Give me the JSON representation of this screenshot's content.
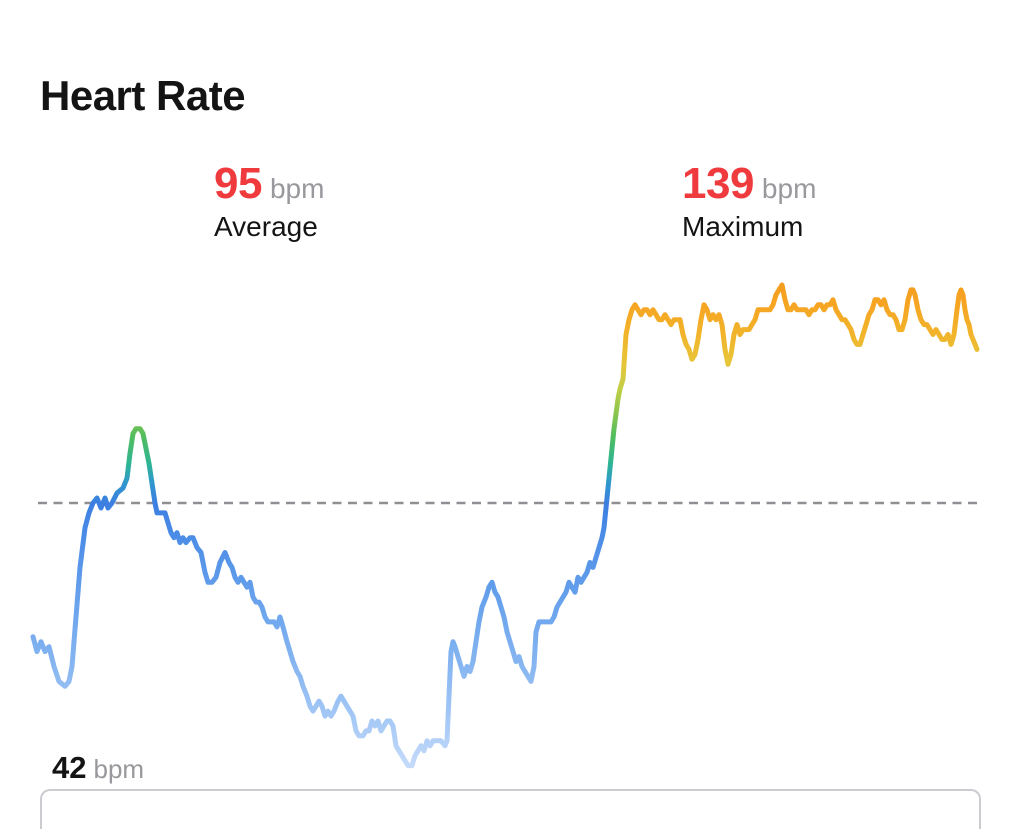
{
  "header": {
    "title": "Heart Rate"
  },
  "stats": {
    "average": {
      "value": "95",
      "unit": "bpm",
      "label": "Average"
    },
    "maximum": {
      "value": "139",
      "unit": "bpm",
      "label": "Maximum"
    }
  },
  "axis": {
    "min_value": "42",
    "min_unit": "bpm"
  },
  "colors": {
    "accent_red": "#EF3B3E",
    "unit_gray": "#98989D",
    "text_black": "#141414",
    "dashed_line": "#8F8F94",
    "axis_border": "#CBCBD0"
  },
  "chart_data": {
    "type": "line",
    "title": "Heart Rate",
    "unit": "bpm",
    "x_axis": "time (no labels shown)",
    "average": 95,
    "maximum": 139,
    "minimum": 42,
    "y_range": [
      42,
      141
    ],
    "grid": false,
    "legend": false,
    "average_reference_line_bpm": 95,
    "gradient_stops": [
      {
        "bpm": 141,
        "color": "#F3991E"
      },
      {
        "bpm": 135,
        "color": "#F6A523"
      },
      {
        "bpm": 129,
        "color": "#F1B42B"
      },
      {
        "bpm": 123,
        "color": "#E7C639"
      },
      {
        "bpm": 118,
        "color": "#C2CE47"
      },
      {
        "bpm": 112,
        "color": "#7CC350"
      },
      {
        "bpm": 108,
        "color": "#4FBC62"
      },
      {
        "bpm": 103,
        "color": "#2EB593"
      },
      {
        "bpm": 99,
        "color": "#2F97CE"
      },
      {
        "bpm": 95,
        "color": "#3C7FE1"
      },
      {
        "bpm": 88,
        "color": "#4C8DE7"
      },
      {
        "bpm": 75,
        "color": "#68A2EC"
      },
      {
        "bpm": 62,
        "color": "#87B6F1"
      },
      {
        "bpm": 50,
        "color": "#A9CBF6"
      },
      {
        "bpm": 42,
        "color": "#C4DAFA"
      }
    ],
    "points": [
      [
        33,
        68
      ],
      [
        37,
        65
      ],
      [
        41,
        67
      ],
      [
        45,
        65
      ],
      [
        49,
        66
      ],
      [
        54,
        62
      ],
      [
        59,
        59
      ],
      [
        65,
        58
      ],
      [
        69,
        59
      ],
      [
        72,
        62
      ],
      [
        76,
        72
      ],
      [
        80,
        82
      ],
      [
        85,
        90
      ],
      [
        89,
        93
      ],
      [
        93,
        95
      ],
      [
        97,
        96
      ],
      [
        101,
        94
      ],
      [
        105,
        96
      ],
      [
        108,
        94
      ],
      [
        112,
        95
      ],
      [
        117,
        97
      ],
      [
        123,
        98
      ],
      [
        127,
        100
      ],
      [
        130,
        105
      ],
      [
        133,
        109
      ],
      [
        136,
        110
      ],
      [
        140,
        110
      ],
      [
        143,
        109
      ],
      [
        146,
        106
      ],
      [
        149,
        103
      ],
      [
        152,
        99
      ],
      [
        155,
        95
      ],
      [
        157,
        93
      ],
      [
        161,
        93
      ],
      [
        165,
        93
      ],
      [
        168,
        91
      ],
      [
        171,
        89
      ],
      [
        174,
        88
      ],
      [
        177,
        89
      ],
      [
        180,
        87
      ],
      [
        183,
        88
      ],
      [
        186,
        87
      ],
      [
        190,
        88
      ],
      [
        193,
        88
      ],
      [
        197,
        86
      ],
      [
        201,
        85
      ],
      [
        205,
        81
      ],
      [
        208,
        79
      ],
      [
        212,
        79
      ],
      [
        216,
        80
      ],
      [
        220,
        83
      ],
      [
        225,
        85
      ],
      [
        229,
        83
      ],
      [
        232,
        82
      ],
      [
        235,
        80
      ],
      [
        238,
        79
      ],
      [
        241,
        80
      ],
      [
        244,
        79
      ],
      [
        247,
        78
      ],
      [
        250,
        79
      ],
      [
        253,
        76
      ],
      [
        256,
        75
      ],
      [
        259,
        75
      ],
      [
        262,
        74
      ],
      [
        265,
        72
      ],
      [
        268,
        71
      ],
      [
        271,
        71
      ],
      [
        274,
        71
      ],
      [
        277,
        70
      ],
      [
        280,
        72
      ],
      [
        283,
        70
      ],
      [
        287,
        67
      ],
      [
        290,
        65
      ],
      [
        293,
        63
      ],
      [
        297,
        61
      ],
      [
        300,
        60
      ],
      [
        303,
        58
      ],
      [
        307,
        56
      ],
      [
        310,
        54
      ],
      [
        313,
        53
      ],
      [
        316,
        54
      ],
      [
        319,
        55
      ],
      [
        322,
        54
      ],
      [
        325,
        52
      ],
      [
        328,
        53
      ],
      [
        331,
        52
      ],
      [
        334,
        53
      ],
      [
        338,
        55
      ],
      [
        341,
        56
      ],
      [
        344,
        55
      ],
      [
        347,
        54
      ],
      [
        350,
        53
      ],
      [
        353,
        52
      ],
      [
        356,
        49
      ],
      [
        359,
        48
      ],
      [
        363,
        48
      ],
      [
        366,
        49
      ],
      [
        369,
        49
      ],
      [
        372,
        51
      ],
      [
        375,
        50
      ],
      [
        378,
        51
      ],
      [
        381,
        49
      ],
      [
        384,
        50
      ],
      [
        387,
        51
      ],
      [
        390,
        51
      ],
      [
        393,
        50
      ],
      [
        396,
        46
      ],
      [
        399,
        45
      ],
      [
        402,
        44
      ],
      [
        405,
        43
      ],
      [
        408,
        42
      ],
      [
        412,
        42
      ],
      [
        415,
        44
      ],
      [
        418,
        45
      ],
      [
        421,
        46
      ],
      [
        424,
        45
      ],
      [
        427,
        47
      ],
      [
        430,
        46
      ],
      [
        433,
        47
      ],
      [
        437,
        47
      ],
      [
        441,
        47
      ],
      [
        445,
        46
      ],
      [
        447,
        47
      ],
      [
        449,
        56
      ],
      [
        451,
        65
      ],
      [
        453,
        67
      ],
      [
        455,
        66
      ],
      [
        458,
        64
      ],
      [
        461,
        62
      ],
      [
        464,
        60
      ],
      [
        467,
        62
      ],
      [
        470,
        61
      ],
      [
        473,
        63
      ],
      [
        476,
        67
      ],
      [
        479,
        71
      ],
      [
        482,
        74
      ],
      [
        486,
        76
      ],
      [
        489,
        78
      ],
      [
        492,
        79
      ],
      [
        495,
        77
      ],
      [
        498,
        76
      ],
      [
        501,
        74
      ],
      [
        504,
        72
      ],
      [
        507,
        69
      ],
      [
        510,
        67
      ],
      [
        513,
        65
      ],
      [
        516,
        63
      ],
      [
        519,
        64
      ],
      [
        522,
        62
      ],
      [
        525,
        61
      ],
      [
        528,
        60
      ],
      [
        531,
        59
      ],
      [
        534,
        62
      ],
      [
        536,
        69
      ],
      [
        539,
        71
      ],
      [
        543,
        71
      ],
      [
        547,
        71
      ],
      [
        551,
        71
      ],
      [
        554,
        72
      ],
      [
        557,
        74
      ],
      [
        560,
        75
      ],
      [
        563,
        76
      ],
      [
        566,
        77
      ],
      [
        569,
        79
      ],
      [
        572,
        78
      ],
      [
        575,
        77
      ],
      [
        578,
        80
      ],
      [
        581,
        79
      ],
      [
        584,
        80
      ],
      [
        587,
        81
      ],
      [
        590,
        83
      ],
      [
        593,
        82
      ],
      [
        596,
        84
      ],
      [
        599,
        86
      ],
      [
        602,
        88
      ],
      [
        604,
        90
      ],
      [
        606,
        94
      ],
      [
        608,
        98
      ],
      [
        610,
        102
      ],
      [
        612,
        106
      ],
      [
        614,
        110
      ],
      [
        616,
        113
      ],
      [
        618,
        116
      ],
      [
        620,
        118
      ],
      [
        623,
        120
      ],
      [
        626,
        129
      ],
      [
        629,
        132
      ],
      [
        632,
        134
      ],
      [
        635,
        135
      ],
      [
        638,
        134
      ],
      [
        641,
        133
      ],
      [
        644,
        134
      ],
      [
        647,
        134
      ],
      [
        650,
        133
      ],
      [
        653,
        134
      ],
      [
        656,
        133
      ],
      [
        659,
        132
      ],
      [
        662,
        132
      ],
      [
        665,
        133
      ],
      [
        668,
        132
      ],
      [
        671,
        131
      ],
      [
        674,
        132
      ],
      [
        677,
        132
      ],
      [
        680,
        132
      ],
      [
        683,
        129
      ],
      [
        686,
        127
      ],
      [
        689,
        126
      ],
      [
        692,
        124
      ],
      [
        695,
        125
      ],
      [
        698,
        128
      ],
      [
        701,
        132
      ],
      [
        704,
        135
      ],
      [
        707,
        134
      ],
      [
        710,
        132
      ],
      [
        713,
        133
      ],
      [
        716,
        132
      ],
      [
        719,
        133
      ],
      [
        722,
        131
      ],
      [
        725,
        126
      ],
      [
        728,
        123
      ],
      [
        731,
        125
      ],
      [
        734,
        129
      ],
      [
        737,
        131
      ],
      [
        740,
        129
      ],
      [
        743,
        130
      ],
      [
        746,
        130
      ],
      [
        749,
        130
      ],
      [
        752,
        131
      ],
      [
        755,
        132
      ],
      [
        758,
        134
      ],
      [
        761,
        134
      ],
      [
        764,
        134
      ],
      [
        767,
        134
      ],
      [
        770,
        134
      ],
      [
        773,
        135
      ],
      [
        776,
        137
      ],
      [
        779,
        138
      ],
      [
        782,
        139
      ],
      [
        785,
        136
      ],
      [
        788,
        134
      ],
      [
        791,
        134
      ],
      [
        794,
        135
      ],
      [
        797,
        134
      ],
      [
        800,
        134
      ],
      [
        803,
        134
      ],
      [
        806,
        134
      ],
      [
        809,
        133
      ],
      [
        812,
        134
      ],
      [
        815,
        134
      ],
      [
        818,
        135
      ],
      [
        821,
        135
      ],
      [
        824,
        134
      ],
      [
        827,
        135
      ],
      [
        830,
        135
      ],
      [
        833,
        136
      ],
      [
        836,
        134
      ],
      [
        839,
        133
      ],
      [
        842,
        132
      ],
      [
        845,
        132
      ],
      [
        848,
        131
      ],
      [
        851,
        130
      ],
      [
        854,
        128
      ],
      [
        857,
        127
      ],
      [
        860,
        127
      ],
      [
        863,
        129
      ],
      [
        866,
        131
      ],
      [
        869,
        133
      ],
      [
        872,
        134
      ],
      [
        875,
        136
      ],
      [
        878,
        136
      ],
      [
        881,
        135
      ],
      [
        884,
        136
      ],
      [
        887,
        134
      ],
      [
        890,
        133
      ],
      [
        893,
        133
      ],
      [
        896,
        132
      ],
      [
        899,
        130
      ],
      [
        902,
        130
      ],
      [
        905,
        132
      ],
      [
        908,
        136
      ],
      [
        911,
        138
      ],
      [
        913,
        138
      ],
      [
        915,
        137
      ],
      [
        918,
        134
      ],
      [
        921,
        132
      ],
      [
        924,
        131
      ],
      [
        927,
        131
      ],
      [
        930,
        130
      ],
      [
        933,
        129
      ],
      [
        936,
        130
      ],
      [
        939,
        129
      ],
      [
        942,
        128
      ],
      [
        945,
        128
      ],
      [
        948,
        129
      ],
      [
        951,
        127
      ],
      [
        954,
        129
      ],
      [
        957,
        134
      ],
      [
        959,
        137
      ],
      [
        961,
        138
      ],
      [
        963,
        137
      ],
      [
        965,
        134
      ],
      [
        967,
        132
      ],
      [
        969,
        131
      ],
      [
        971,
        129
      ],
      [
        973,
        128
      ],
      [
        975,
        127
      ],
      [
        977,
        126
      ]
    ]
  }
}
